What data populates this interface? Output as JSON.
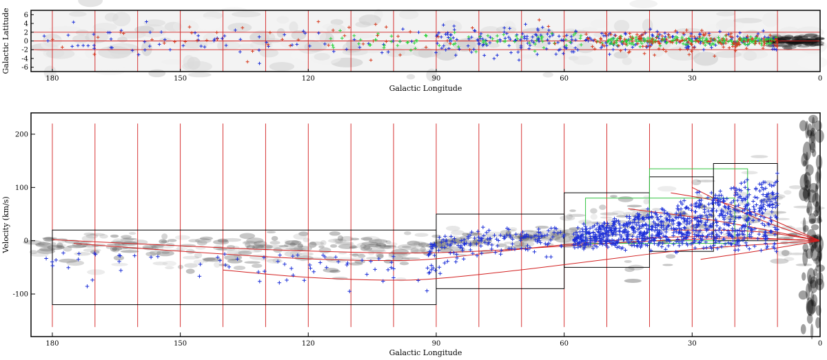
{
  "chart_data": [
    {
      "type": "scatter",
      "title": "",
      "xlabel": "Galactic Longitude",
      "ylabel": "Galactic Latitude",
      "xlim": [
        185,
        0
      ],
      "ylim": [
        -7,
        7
      ],
      "xticks": [
        "180",
        "150",
        "120",
        "90",
        "60",
        "30",
        "0"
      ],
      "yticks": [
        "6",
        "4",
        "2",
        "0",
        "-2",
        "-4",
        "-6"
      ],
      "reference_lines_b": [
        -2,
        0,
        2
      ],
      "grid_longitudes": [
        180,
        170,
        160,
        150,
        140,
        130,
        120,
        110,
        100,
        90,
        80,
        70,
        60,
        50,
        40,
        30,
        20,
        10
      ],
      "colors": {
        "frame": "#000000",
        "guide": "#d21e1e",
        "blue": "#1c2fd8",
        "green": "#2ad33a",
        "red": "#d63a1e",
        "gray": "#505050"
      }
    },
    {
      "type": "scatter",
      "title": "",
      "xlabel": "Galactic Longitude",
      "ylabel": "Velocity (km/s)",
      "xlim": [
        185,
        0
      ],
      "ylim": [
        -180,
        240
      ],
      "xticks": [
        "180",
        "150",
        "120",
        "90",
        "60",
        "30",
        "0"
      ],
      "yticks": [
        "200",
        "100",
        "0",
        "-100"
      ],
      "grid_longitudes": [
        180,
        170,
        160,
        150,
        140,
        130,
        120,
        110,
        100,
        90,
        80,
        70,
        60,
        50,
        40,
        30,
        20,
        10
      ],
      "regions": [
        {
          "l": [
            180,
            90
          ],
          "v": [
            -120,
            20
          ],
          "color": "black"
        },
        {
          "l": [
            90,
            60
          ],
          "v": [
            -90,
            50
          ],
          "color": "black"
        },
        {
          "l": [
            60,
            40
          ],
          "v": [
            -50,
            90
          ],
          "color": "black"
        },
        {
          "l": [
            55,
            20
          ],
          "v": [
            -5,
            80
          ],
          "color": "green"
        },
        {
          "l": [
            40,
            25
          ],
          "v": [
            -20,
            120
          ],
          "color": "black"
        },
        {
          "l": [
            40,
            17
          ],
          "v": [
            0,
            135
          ],
          "color": "green"
        },
        {
          "l": [
            25,
            10
          ],
          "v": [
            0,
            145
          ],
          "color": "black"
        }
      ],
      "arm_curves": [
        [
          [
            180,
            2
          ],
          [
            150,
            -10
          ],
          [
            120,
            -20
          ],
          [
            90,
            -25
          ],
          [
            60,
            -10
          ],
          [
            40,
            0
          ],
          [
            20,
            5
          ],
          [
            0,
            0
          ]
        ],
        [
          [
            175,
            -5
          ],
          [
            150,
            -20
          ],
          [
            120,
            -35
          ],
          [
            100,
            -38
          ],
          [
            90,
            -35
          ],
          [
            70,
            -15
          ],
          [
            50,
            0
          ],
          [
            30,
            10
          ],
          [
            0,
            0
          ]
        ],
        [
          [
            140,
            -55
          ],
          [
            120,
            -70
          ],
          [
            100,
            -75
          ],
          [
            90,
            -72
          ],
          [
            70,
            -55
          ],
          [
            50,
            -35
          ],
          [
            30,
            -15
          ],
          [
            0,
            0
          ]
        ],
        [
          [
            28,
            -35
          ],
          [
            15,
            -20
          ],
          [
            0,
            0
          ]
        ],
        [
          [
            30,
            100
          ],
          [
            15,
            40
          ],
          [
            0,
            0
          ]
        ],
        [
          [
            35,
            90
          ],
          [
            20,
            70
          ],
          [
            0,
            0
          ]
        ],
        [
          [
            45,
            60
          ],
          [
            25,
            40
          ],
          [
            0,
            0
          ]
        ],
        [
          [
            35,
            20
          ],
          [
            15,
            20
          ],
          [
            0,
            0
          ]
        ]
      ],
      "colors": {
        "frame": "#000000",
        "guide": "#d21e1e",
        "box": "#000000",
        "green_box": "#2ec23e",
        "markers": "#1c2fd8",
        "emission": "#1a1a1a"
      }
    }
  ]
}
